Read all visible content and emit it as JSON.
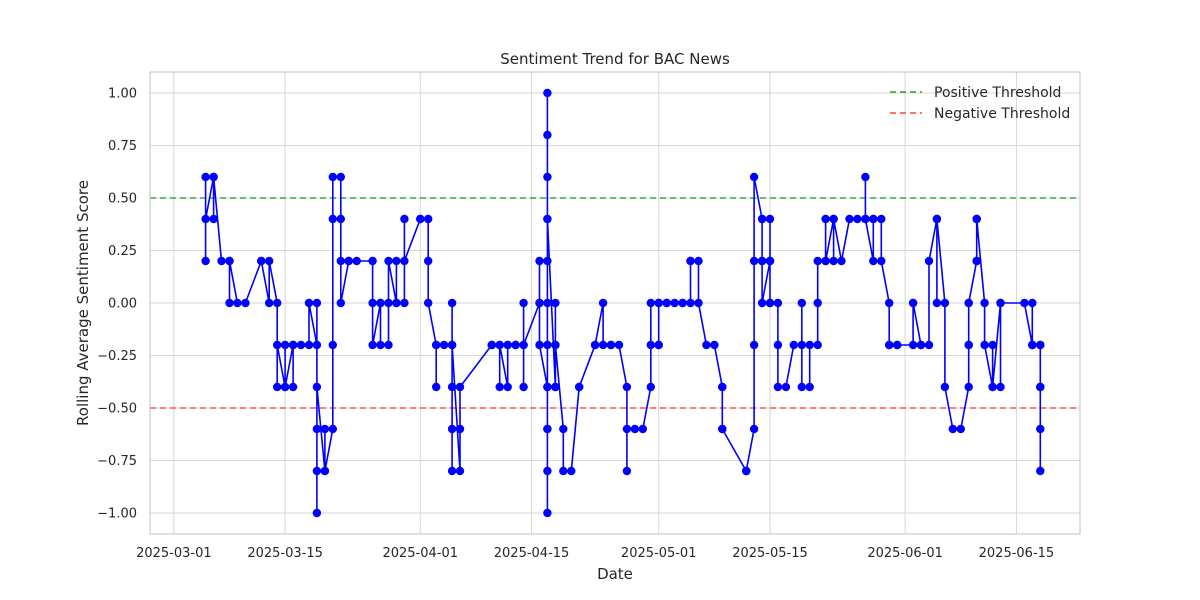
{
  "chart_data": {
    "type": "line",
    "title": "Sentiment Trend for BAC News",
    "xlabel": "Date",
    "ylabel": "Rolling Average Sentiment Score",
    "xlim": [
      "2025-02-26",
      "2025-06-23"
    ],
    "ylim": [
      -1.1,
      1.1
    ],
    "x_ticks": [
      "2025-03-01",
      "2025-03-15",
      "2025-04-01",
      "2025-04-15",
      "2025-05-01",
      "2025-05-15",
      "2025-06-01",
      "2025-06-15"
    ],
    "x_tick_labels": [
      "2025-03-01",
      "2025-03-15",
      "2025-04-01",
      "2025-04-15",
      "2025-05-01",
      "2025-05-15",
      "2025-06-01",
      "2025-06-15"
    ],
    "y_ticks": [
      1.0,
      0.75,
      0.5,
      0.25,
      0.0,
      -0.25,
      -0.5,
      -0.75,
      -1.0
    ],
    "y_tick_labels": [
      "1.00",
      "0.75",
      "0.50",
      "0.25",
      "0.00",
      "−0.25",
      "−0.50",
      "−0.75",
      "−1.00"
    ],
    "grid": true,
    "legend_position": "top-right",
    "series": [
      {
        "color": "#0000ff",
        "marker": "circle",
        "points": [
          [
            "2025-03-05",
            0.2
          ],
          [
            "2025-03-05",
            0.6
          ],
          [
            "2025-03-05",
            0.4
          ],
          [
            "2025-03-06",
            0.6
          ],
          [
            "2025-03-06",
            0.4
          ],
          [
            "2025-03-06",
            0.6
          ],
          [
            "2025-03-07",
            0.2
          ],
          [
            "2025-03-08",
            0.2
          ],
          [
            "2025-03-08",
            0.0
          ],
          [
            "2025-03-08",
            0.2
          ],
          [
            "2025-03-09",
            0.0
          ],
          [
            "2025-03-10",
            0.0
          ],
          [
            "2025-03-12",
            0.2
          ],
          [
            "2025-03-12",
            0.2
          ],
          [
            "2025-03-13",
            0.0
          ],
          [
            "2025-03-13",
            0.2
          ],
          [
            "2025-03-14",
            0.0
          ],
          [
            "2025-03-14",
            -0.4
          ],
          [
            "2025-03-14",
            -0.2
          ],
          [
            "2025-03-15",
            -0.4
          ],
          [
            "2025-03-15",
            -0.2
          ],
          [
            "2025-03-15",
            -0.4
          ],
          [
            "2025-03-16",
            -0.2
          ],
          [
            "2025-03-16",
            -0.2
          ],
          [
            "2025-03-16",
            -0.4
          ],
          [
            "2025-03-16",
            -0.2
          ],
          [
            "2025-03-17",
            -0.2
          ],
          [
            "2025-03-18",
            -0.2
          ],
          [
            "2025-03-18",
            0.0
          ],
          [
            "2025-03-19",
            -0.2
          ],
          [
            "2025-03-19",
            0.0
          ],
          [
            "2025-03-19",
            -0.6
          ],
          [
            "2025-03-19",
            -0.8
          ],
          [
            "2025-03-19",
            -1.0
          ],
          [
            "2025-03-19",
            -0.4
          ],
          [
            "2025-03-20",
            -0.8
          ],
          [
            "2025-03-20",
            -0.6
          ],
          [
            "2025-03-20",
            -0.8
          ],
          [
            "2025-03-21",
            -0.6
          ],
          [
            "2025-03-21",
            -0.2
          ],
          [
            "2025-03-21",
            0.4
          ],
          [
            "2025-03-21",
            0.6
          ],
          [
            "2025-03-22",
            0.6
          ],
          [
            "2025-03-22",
            0.4
          ],
          [
            "2025-03-22",
            0.2
          ],
          [
            "2025-03-22",
            0.0
          ],
          [
            "2025-03-23",
            0.2
          ],
          [
            "2025-03-23",
            0.2
          ],
          [
            "2025-03-24",
            0.2
          ],
          [
            "2025-03-26",
            0.2
          ],
          [
            "2025-03-26",
            0.0
          ],
          [
            "2025-03-26",
            -0.2
          ],
          [
            "2025-03-27",
            0.0
          ],
          [
            "2025-03-27",
            -0.2
          ],
          [
            "2025-03-27",
            0.0
          ],
          [
            "2025-03-28",
            0.0
          ],
          [
            "2025-03-28",
            -0.2
          ],
          [
            "2025-03-28",
            0.2
          ],
          [
            "2025-03-29",
            0.0
          ],
          [
            "2025-03-29",
            0.2
          ],
          [
            "2025-03-29",
            0.0
          ],
          [
            "2025-03-30",
            0.0
          ],
          [
            "2025-03-30",
            0.4
          ],
          [
            "2025-03-30",
            0.2
          ],
          [
            "2025-04-01",
            0.4
          ],
          [
            "2025-04-01",
            0.4
          ],
          [
            "2025-04-02",
            0.4
          ],
          [
            "2025-04-02",
            0.2
          ],
          [
            "2025-04-02",
            0.0
          ],
          [
            "2025-04-03",
            -0.2
          ],
          [
            "2025-04-03",
            -0.4
          ],
          [
            "2025-04-03",
            -0.2
          ],
          [
            "2025-04-04",
            -0.2
          ],
          [
            "2025-04-05",
            -0.2
          ],
          [
            "2025-04-05",
            0.0
          ],
          [
            "2025-04-05",
            -0.6
          ],
          [
            "2025-04-05",
            -0.8
          ],
          [
            "2025-04-05",
            -0.4
          ],
          [
            "2025-04-05",
            -0.2
          ],
          [
            "2025-04-06",
            -0.8
          ],
          [
            "2025-04-06",
            -0.6
          ],
          [
            "2025-04-06",
            -0.4
          ],
          [
            "2025-04-10",
            -0.2
          ],
          [
            "2025-04-10",
            -0.2
          ],
          [
            "2025-04-11",
            -0.2
          ],
          [
            "2025-04-11",
            -0.4
          ],
          [
            "2025-04-11",
            -0.2
          ],
          [
            "2025-04-12",
            -0.4
          ],
          [
            "2025-04-12",
            -0.2
          ],
          [
            "2025-04-12",
            -0.2
          ],
          [
            "2025-04-13",
            -0.2
          ],
          [
            "2025-04-13",
            -0.2
          ],
          [
            "2025-04-14",
            -0.2
          ],
          [
            "2025-04-14",
            -0.4
          ],
          [
            "2025-04-14",
            0.0
          ],
          [
            "2025-04-14",
            -0.2
          ],
          [
            "2025-04-16",
            0.0
          ],
          [
            "2025-04-16",
            0.2
          ],
          [
            "2025-04-16",
            0.0
          ],
          [
            "2025-04-16",
            -0.2
          ],
          [
            "2025-04-17",
            -0.4
          ],
          [
            "2025-04-17",
            -0.6
          ],
          [
            "2025-04-17",
            0.6
          ],
          [
            "2025-04-17",
            0.8
          ],
          [
            "2025-04-17",
            1.0
          ],
          [
            "2025-04-17",
            -1.0
          ],
          [
            "2025-04-17",
            -0.8
          ],
          [
            "2025-04-17",
            0.4
          ],
          [
            "2025-04-17",
            -0.6
          ],
          [
            "2025-04-17",
            -0.4
          ],
          [
            "2025-04-17",
            0.0
          ],
          [
            "2025-04-17",
            0.2
          ],
          [
            "2025-04-17",
            -0.2
          ],
          [
            "2025-04-17",
            0.4
          ],
          [
            "2025-04-18",
            -0.4
          ],
          [
            "2025-04-18",
            0.0
          ],
          [
            "2025-04-18",
            -0.2
          ],
          [
            "2025-04-18",
            -0.4
          ],
          [
            "2025-04-18",
            -0.2
          ],
          [
            "2025-04-19",
            -0.6
          ],
          [
            "2025-04-19",
            -0.8
          ],
          [
            "2025-04-20",
            -0.8
          ],
          [
            "2025-04-21",
            -0.4
          ],
          [
            "2025-04-21",
            -0.4
          ],
          [
            "2025-04-23",
            -0.2
          ],
          [
            "2025-04-23",
            -0.2
          ],
          [
            "2025-04-24",
            0.0
          ],
          [
            "2025-04-24",
            -0.2
          ],
          [
            "2025-04-25",
            -0.2
          ],
          [
            "2025-04-25",
            -0.2
          ],
          [
            "2025-04-26",
            -0.2
          ],
          [
            "2025-04-27",
            -0.4
          ],
          [
            "2025-04-27",
            -0.8
          ],
          [
            "2025-04-27",
            -0.6
          ],
          [
            "2025-04-28",
            -0.6
          ],
          [
            "2025-04-29",
            -0.6
          ],
          [
            "2025-04-30",
            -0.4
          ],
          [
            "2025-04-30",
            0.0
          ],
          [
            "2025-04-30",
            -0.2
          ],
          [
            "2025-05-01",
            -0.2
          ],
          [
            "2025-05-01",
            -0.2
          ],
          [
            "2025-05-01",
            0.0
          ],
          [
            "2025-05-01",
            0.0
          ],
          [
            "2025-05-02",
            0.0
          ],
          [
            "2025-05-02",
            0.0
          ],
          [
            "2025-05-03",
            0.0
          ],
          [
            "2025-05-04",
            0.0
          ],
          [
            "2025-05-04",
            0.0
          ],
          [
            "2025-05-05",
            0.0
          ],
          [
            "2025-05-05",
            0.2
          ],
          [
            "2025-05-05",
            0.2
          ],
          [
            "2025-05-06",
            0.2
          ],
          [
            "2025-05-06",
            0.0
          ],
          [
            "2025-05-07",
            -0.2
          ],
          [
            "2025-05-08",
            -0.2
          ],
          [
            "2025-05-09",
            -0.4
          ],
          [
            "2025-05-09",
            -0.6
          ],
          [
            "2025-05-09",
            -0.4
          ],
          [
            "2025-05-09",
            -0.6
          ],
          [
            "2025-05-12",
            -0.8
          ],
          [
            "2025-05-12",
            -0.8
          ],
          [
            "2025-05-12",
            -0.8
          ],
          [
            "2025-05-13",
            -0.6
          ],
          [
            "2025-05-13",
            -0.2
          ],
          [
            "2025-05-13",
            0.2
          ],
          [
            "2025-05-13",
            0.6
          ],
          [
            "2025-05-14",
            0.4
          ],
          [
            "2025-05-14",
            0.2
          ],
          [
            "2025-05-14",
            0.4
          ],
          [
            "2025-05-14",
            0.2
          ],
          [
            "2025-05-14",
            0.0
          ],
          [
            "2025-05-15",
            0.2
          ],
          [
            "2025-05-15",
            0.2
          ],
          [
            "2025-05-15",
            0.0
          ],
          [
            "2025-05-15",
            0.4
          ],
          [
            "2025-05-15",
            0.2
          ],
          [
            "2025-05-15",
            0.0
          ],
          [
            "2025-05-16",
            0.0
          ],
          [
            "2025-05-16",
            -0.2
          ],
          [
            "2025-05-16",
            -0.4
          ],
          [
            "2025-05-17",
            -0.4
          ],
          [
            "2025-05-18",
            -0.2
          ],
          [
            "2025-05-19",
            -0.2
          ],
          [
            "2025-05-19",
            0.0
          ],
          [
            "2025-05-19",
            -0.4
          ],
          [
            "2025-05-20",
            -0.4
          ],
          [
            "2025-05-20",
            -0.2
          ],
          [
            "2025-05-21",
            -0.2
          ],
          [
            "2025-05-21",
            0.0
          ],
          [
            "2025-05-21",
            0.2
          ],
          [
            "2025-05-22",
            0.2
          ],
          [
            "2025-05-22",
            0.4
          ],
          [
            "2025-05-22",
            0.2
          ],
          [
            "2025-05-23",
            0.4
          ],
          [
            "2025-05-23",
            0.2
          ],
          [
            "2025-05-23",
            0.4
          ],
          [
            "2025-05-24",
            0.2
          ],
          [
            "2025-05-25",
            0.4
          ],
          [
            "2025-05-26",
            0.4
          ],
          [
            "2025-05-27",
            0.4
          ],
          [
            "2025-05-27",
            0.6
          ],
          [
            "2025-05-27",
            0.4
          ],
          [
            "2025-05-28",
            0.2
          ],
          [
            "2025-05-28",
            0.4
          ],
          [
            "2025-05-28",
            0.4
          ],
          [
            "2025-05-29",
            0.4
          ],
          [
            "2025-05-29",
            0.2
          ],
          [
            "2025-05-30",
            0.0
          ],
          [
            "2025-05-30",
            -0.2
          ],
          [
            "2025-05-30",
            -0.2
          ],
          [
            "2025-05-31",
            -0.2
          ],
          [
            "2025-05-31",
            -0.2
          ],
          [
            "2025-06-02",
            -0.2
          ],
          [
            "2025-06-02",
            0.0
          ],
          [
            "2025-06-02",
            0.0
          ],
          [
            "2025-06-03",
            -0.2
          ],
          [
            "2025-06-03",
            -0.2
          ],
          [
            "2025-06-04",
            -0.2
          ],
          [
            "2025-06-04",
            0.2
          ],
          [
            "2025-06-05",
            0.4
          ],
          [
            "2025-06-05",
            0.0
          ],
          [
            "2025-06-05",
            0.4
          ],
          [
            "2025-06-06",
            0.0
          ],
          [
            "2025-06-06",
            -0.4
          ],
          [
            "2025-06-07",
            -0.6
          ],
          [
            "2025-06-08",
            -0.6
          ],
          [
            "2025-06-09",
            -0.4
          ],
          [
            "2025-06-09",
            -0.2
          ],
          [
            "2025-06-09",
            0.0
          ],
          [
            "2025-06-09",
            -0.2
          ],
          [
            "2025-06-09",
            0.0
          ],
          [
            "2025-06-10",
            0.2
          ],
          [
            "2025-06-10",
            0.2
          ],
          [
            "2025-06-10",
            0.4
          ],
          [
            "2025-06-10",
            0.4
          ],
          [
            "2025-06-11",
            0.0
          ],
          [
            "2025-06-11",
            -0.2
          ],
          [
            "2025-06-12",
            -0.4
          ],
          [
            "2025-06-12",
            -0.2
          ],
          [
            "2025-06-12",
            -0.4
          ],
          [
            "2025-06-13",
            0.0
          ],
          [
            "2025-06-13",
            -0.4
          ],
          [
            "2025-06-13",
            0.0
          ],
          [
            "2025-06-16",
            0.0
          ],
          [
            "2025-06-17",
            -0.2
          ],
          [
            "2025-06-17",
            0.0
          ],
          [
            "2025-06-17",
            -0.2
          ],
          [
            "2025-06-17",
            -0.2
          ],
          [
            "2025-06-18",
            -0.2
          ],
          [
            "2025-06-18",
            -0.4
          ],
          [
            "2025-06-18",
            -0.8
          ],
          [
            "2025-06-18",
            -0.6
          ],
          [
            "2025-06-18",
            -0.2
          ],
          [
            "2025-06-18",
            -0.4
          ]
        ]
      }
    ],
    "threshold_lines": [
      {
        "name": "Positive Threshold",
        "y": 0.5,
        "color": "#2ca02c",
        "style": "dashed"
      },
      {
        "name": "Negative Threshold",
        "y": -0.5,
        "color": "#ff4444",
        "style": "dashed"
      }
    ],
    "colors": {
      "grid": "#d6d6d6",
      "axes": "#cccccc",
      "text": "#262626"
    }
  }
}
